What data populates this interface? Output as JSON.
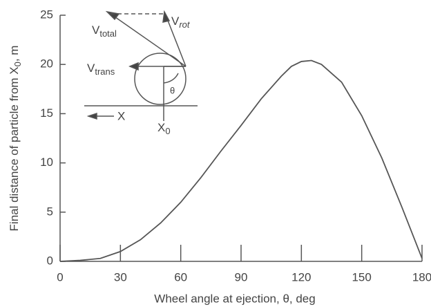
{
  "chart_data": {
    "type": "line",
    "x_label": "Wheel angle at ejection, θ, deg",
    "y_label": {
      "text": "Final distance of particle from X",
      "sub": "0",
      "tail": ", m"
    },
    "x": [
      0,
      10,
      20,
      30,
      40,
      50,
      60,
      70,
      80,
      90,
      100,
      110,
      115,
      120,
      125,
      130,
      140,
      150,
      160,
      170,
      180
    ],
    "series": [
      {
        "color": "#555",
        "values": [
          0,
          0.1,
          0.3,
          1.0,
          2.2,
          3.9,
          6.0,
          8.5,
          11.2,
          13.8,
          16.5,
          18.8,
          19.8,
          20.3,
          20.4,
          20.0,
          18.2,
          14.8,
          10.5,
          5.5,
          0.3
        ]
      }
    ],
    "xlim": [
      0,
      180
    ],
    "xticks": [
      0,
      30,
      60,
      90,
      120,
      150,
      180
    ],
    "ylim": [
      0,
      25
    ],
    "yticks": [
      0,
      5,
      10,
      15,
      20,
      25
    ],
    "grid": false,
    "inset": {
      "v_total": {
        "text": "V",
        "sub": "total"
      },
      "v_rot": {
        "text": "V",
        "sub": "rot"
      },
      "v_trans": {
        "text": "V",
        "sub": "trans"
      },
      "theta": "θ",
      "x": "X",
      "x0": {
        "text": "X",
        "sub": "0"
      }
    }
  }
}
